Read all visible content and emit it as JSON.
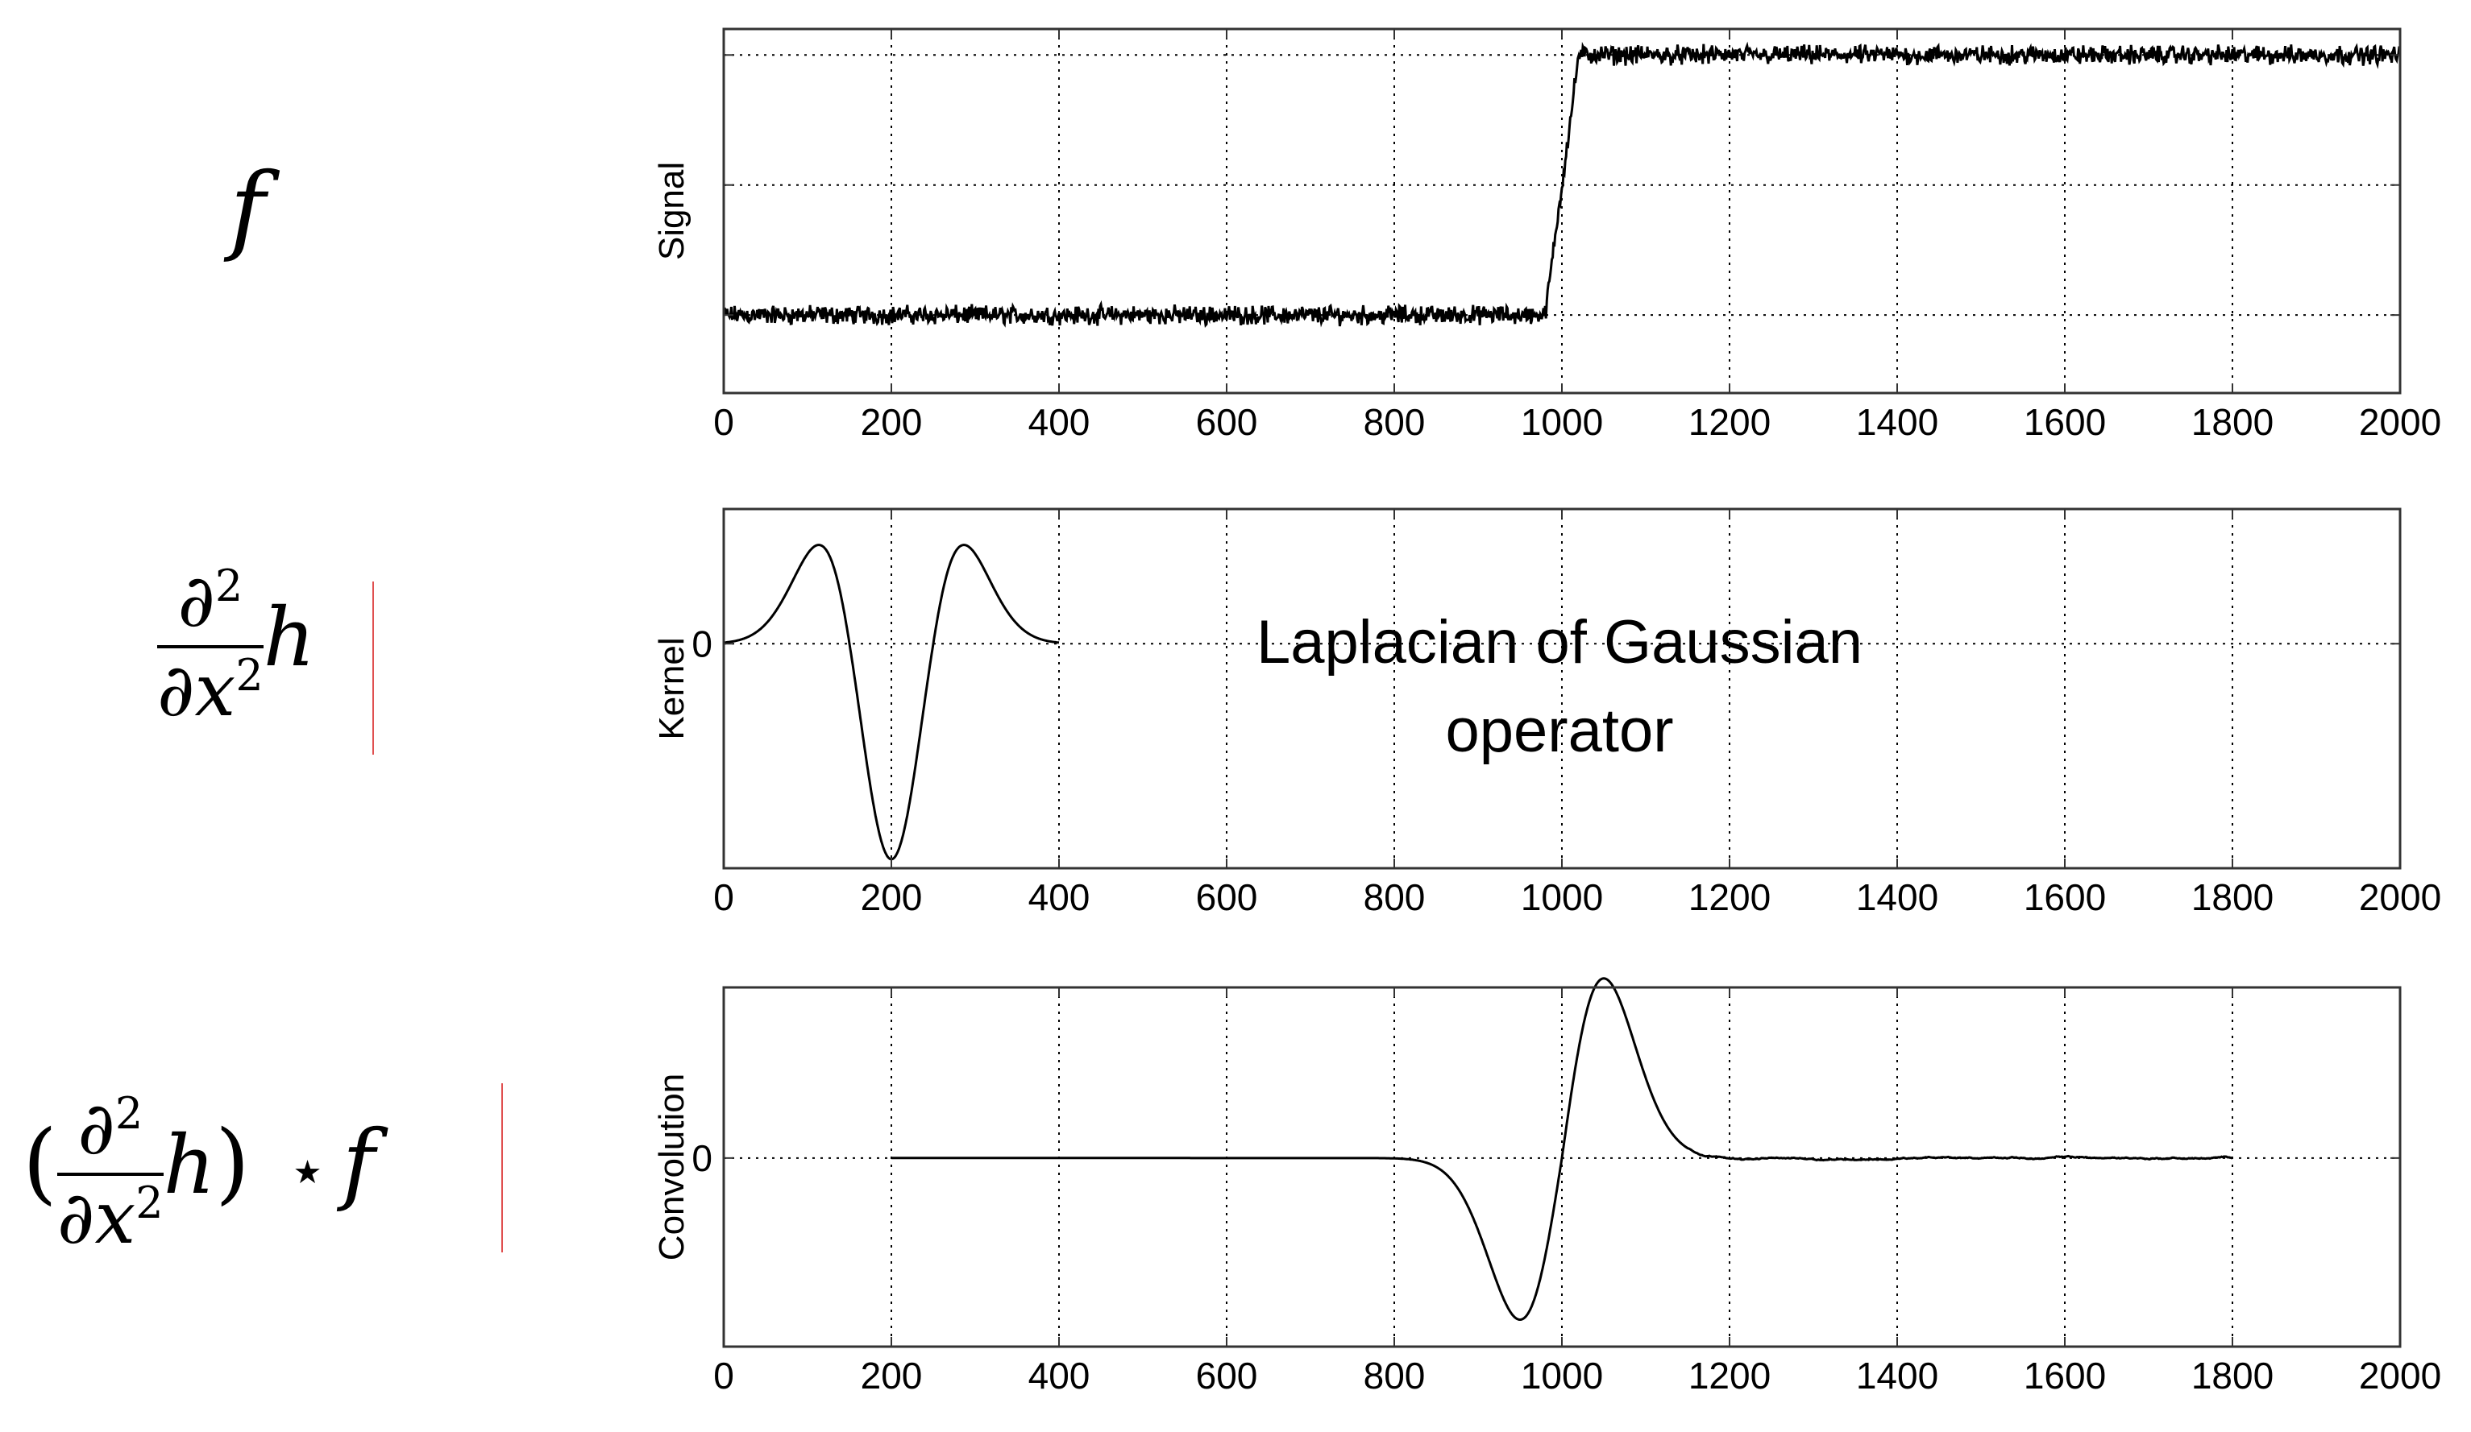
{
  "formulas": {
    "f": {
      "text": "f"
    },
    "kernel": {
      "partial": "∂",
      "sq": "2",
      "den_var": "x",
      "den_sq": "2",
      "h": "h"
    },
    "conv": {
      "open": "(",
      "partial": "∂",
      "sq": "2",
      "den_var": "x",
      "den_sq": "2",
      "h": "h",
      "close": ")",
      "star": "⋆",
      "f": "f"
    }
  },
  "chart_data": [
    {
      "type": "line",
      "ylabel": "Signal",
      "xlim": [
        0,
        2000
      ],
      "xticks": [
        "0",
        "200",
        "400",
        "600",
        "800",
        "1000",
        "1200",
        "1400",
        "1600",
        "1800",
        "2000"
      ],
      "ylim": [
        -0.6,
        2.2
      ],
      "yticks": [
        0,
        1,
        2
      ],
      "ytick_labels": [],
      "grid": true,
      "series": [
        {
          "kind": "noisy-step",
          "step_start": 980,
          "step_end": 1020,
          "low": 0.0,
          "high": 2.0,
          "noise": 0.04,
          "x_range": [
            0,
            2000
          ]
        }
      ]
    },
    {
      "type": "line",
      "ylabel": "Kernel",
      "xlim": [
        0,
        2000
      ],
      "xticks": [
        "0",
        "200",
        "400",
        "600",
        "800",
        "1000",
        "1200",
        "1400",
        "1600",
        "1800",
        "2000"
      ],
      "ylim": [
        -1.25,
        0.75
      ],
      "yticks": [
        0
      ],
      "ytick_labels": [
        "0"
      ],
      "grid": true,
      "annotation": [
        "Laplacian of Gaussian",
        "operator"
      ],
      "series": [
        {
          "kind": "log-kernel",
          "center": 200,
          "sigma": 50,
          "x_range": [
            0,
            400
          ],
          "min": -1.2,
          "max": 0.55
        }
      ]
    },
    {
      "type": "line",
      "ylabel": "Convolution",
      "xlim": [
        0,
        2000
      ],
      "xticks": [
        "0",
        "200",
        "400",
        "600",
        "800",
        "1000",
        "1200",
        "1400",
        "1600",
        "1800",
        "2000"
      ],
      "ylim": [
        -1.05,
        0.95
      ],
      "yticks": [
        0
      ],
      "ytick_labels": [
        "0"
      ],
      "grid": true,
      "series": [
        {
          "kind": "log-response",
          "center": 1000,
          "peak_x": 950,
          "peak": 0.9,
          "trough_x": 1050,
          "trough": -1.0,
          "x_range": [
            200,
            1800
          ]
        }
      ]
    }
  ],
  "colors": {
    "line": "#000000",
    "grid": "#000000",
    "frame": "#333333",
    "marker": "#e05050"
  }
}
